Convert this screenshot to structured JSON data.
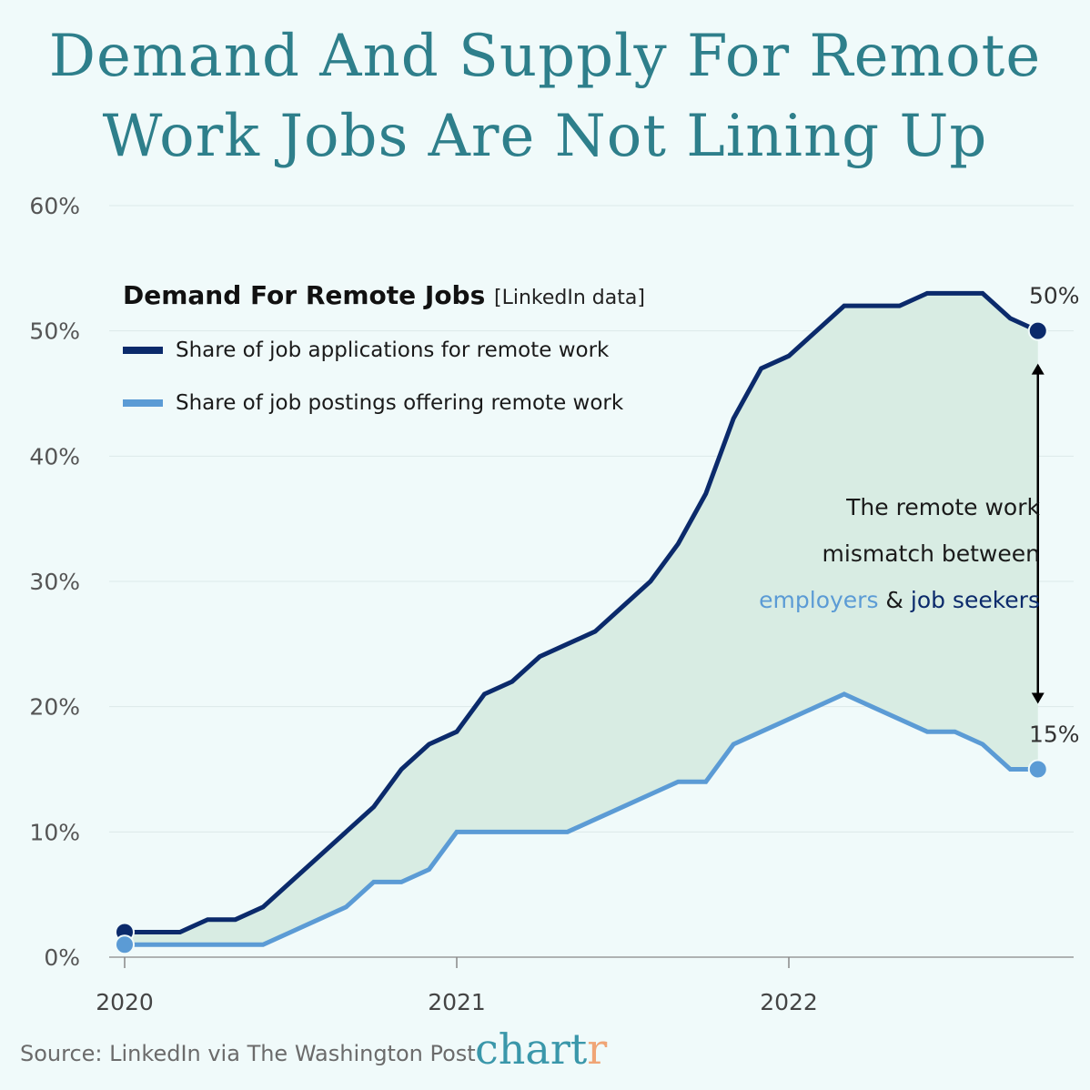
{
  "title_line1": "Demand And Supply For Remote",
  "title_line2": "Work Jobs Are Not Lining Up",
  "source": "Source: LinkedIn via The Washington Post",
  "logo": {
    "main": "chart",
    "accent": "r"
  },
  "colors": {
    "applications": "#0b2a6b",
    "postings": "#5b9bd5",
    "gap_fill": "#d8ece3",
    "title": "#2e7f8b",
    "background": "#f0fafa"
  },
  "annotation": {
    "line1": "The remote work",
    "line2": "mismatch between",
    "employers": "employers",
    "amp": "&",
    "job_seekers": "job seekers"
  },
  "chart_data": {
    "type": "line",
    "title": "Demand For Remote Jobs",
    "subtitle": "[LinkedIn data]",
    "xlabel": "",
    "ylabel": "",
    "ylim": [
      0,
      60
    ],
    "yticks": [
      "0%",
      "10%",
      "20%",
      "30%",
      "40%",
      "50%",
      "60%"
    ],
    "xticks": [
      "2020",
      "2021",
      "2022"
    ],
    "grid": true,
    "legend": "top-left",
    "x": [
      "2020-01",
      "2020-02",
      "2020-03",
      "2020-04",
      "2020-05",
      "2020-06",
      "2020-07",
      "2020-08",
      "2020-09",
      "2020-10",
      "2020-11",
      "2020-12",
      "2021-01",
      "2021-02",
      "2021-03",
      "2021-04",
      "2021-05",
      "2021-06",
      "2021-07",
      "2021-08",
      "2021-09",
      "2021-10",
      "2021-11",
      "2021-12",
      "2022-01",
      "2022-02",
      "2022-03",
      "2022-04",
      "2022-05",
      "2022-06",
      "2022-07",
      "2022-08",
      "2022-09",
      "2022-10"
    ],
    "series": [
      {
        "name": "Share of job applications for remote work",
        "values": [
          2,
          2,
          2,
          3,
          3,
          4,
          6,
          8,
          10,
          12,
          15,
          17,
          18,
          21,
          22,
          24,
          25,
          26,
          28,
          30,
          33,
          37,
          43,
          47,
          48,
          50,
          52,
          52,
          52,
          53,
          53,
          53,
          51,
          50
        ],
        "end_label": "50%"
      },
      {
        "name": "Share of job postings offering remote work",
        "values": [
          1,
          1,
          1,
          1,
          1,
          1,
          2,
          3,
          4,
          6,
          6,
          7,
          10,
          10,
          10,
          10,
          10,
          11,
          12,
          13,
          14,
          14,
          17,
          18,
          19,
          20,
          21,
          20,
          19,
          18,
          18,
          17,
          15,
          15
        ],
        "end_label": "15%"
      }
    ]
  }
}
